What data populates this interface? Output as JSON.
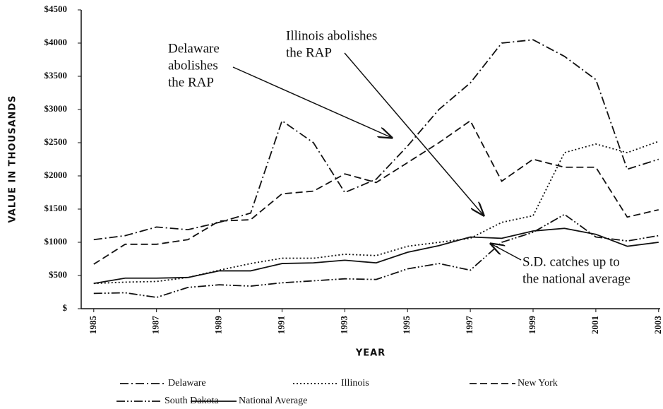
{
  "chart_data": {
    "type": "line",
    "y_label": "VALUE IN THOUSANDS",
    "x_label": "YEAR",
    "x": [
      1985,
      1986,
      1987,
      1988,
      1989,
      1990,
      1991,
      1992,
      1993,
      1994,
      1995,
      1996,
      1997,
      1998,
      1999,
      2000,
      2001,
      2002,
      2003
    ],
    "xlim": [
      1984.6,
      2003.05
    ],
    "xticks": [
      1985,
      1987,
      1989,
      1991,
      1993,
      1995,
      1997,
      1999,
      2001,
      2003
    ],
    "ylim": [
      0,
      4500
    ],
    "yticks": [
      {
        "value": 0,
        "label": "$"
      },
      {
        "value": 500,
        "label": "$500"
      },
      {
        "value": 1000,
        "label": "$1000"
      },
      {
        "value": 1500,
        "label": "$1500"
      },
      {
        "value": 2000,
        "label": "$2000"
      },
      {
        "value": 2500,
        "label": "$2500"
      },
      {
        "value": 3000,
        "label": "$3000"
      },
      {
        "value": 3500,
        "label": "$3500"
      },
      {
        "value": 4000,
        "label": "$4000"
      },
      {
        "value": 4500,
        "label": "$4500"
      }
    ],
    "series": [
      {
        "name": "Delaware",
        "color": "#111111",
        "dash": "12,4,2,4",
        "values": [
          1040,
          1100,
          1230,
          1190,
          1300,
          1440,
          2830,
          2500,
          1750,
          1950,
          2450,
          3000,
          3400,
          4000,
          4050,
          3800,
          3450,
          2100,
          2250
        ]
      },
      {
        "name": "Illinois",
        "color": "#111111",
        "dash": "2,3",
        "values": [
          380,
          400,
          410,
          470,
          580,
          680,
          760,
          760,
          820,
          800,
          940,
          1000,
          1060,
          1300,
          1400,
          2350,
          2480,
          2350,
          2520
        ]
      },
      {
        "name": "New York",
        "color": "#111111",
        "dash": "10,5",
        "values": [
          670,
          970,
          970,
          1040,
          1320,
          1340,
          1730,
          1770,
          2030,
          1900,
          2200,
          2500,
          2830,
          1920,
          2250,
          2130,
          2130,
          1380,
          1490
        ]
      },
      {
        "name": "South Dakota",
        "color": "#111111",
        "dash": "12,3,2,3,2,3",
        "values": [
          230,
          240,
          170,
          320,
          360,
          340,
          390,
          420,
          450,
          440,
          600,
          680,
          580,
          1000,
          1150,
          1420,
          1080,
          1020,
          1100
        ]
      },
      {
        "name": "National Average",
        "color": "#111111",
        "dash": "",
        "values": [
          380,
          460,
          460,
          470,
          570,
          570,
          680,
          690,
          730,
          690,
          850,
          950,
          1080,
          1060,
          1170,
          1210,
          1120,
          940,
          1000
        ]
      }
    ],
    "annotations": [
      {
        "lines": [
          "Delaware",
          "abolishes",
          "the RAP"
        ]
      },
      {
        "lines": [
          "Illinois abolishes",
          "the RAP"
        ]
      },
      {
        "lines": [
          "S.D. catches up to",
          "the national average"
        ]
      }
    ]
  }
}
